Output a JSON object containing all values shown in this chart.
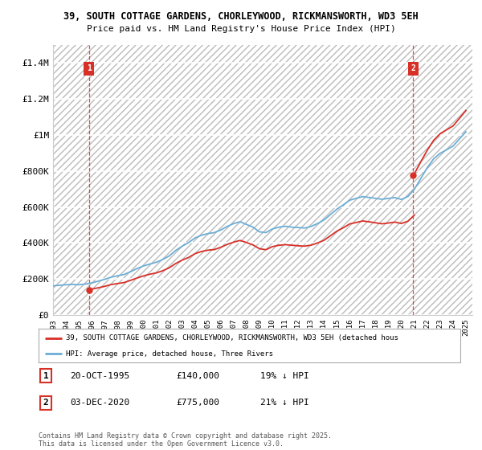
{
  "title_line1": "39, SOUTH COTTAGE GARDENS, CHORLEYWOOD, RICKMANSWORTH, WD3 5EH",
  "title_line2": "Price paid vs. HM Land Registry's House Price Index (HPI)",
  "ylabel_ticks": [
    "£0",
    "£200K",
    "£400K",
    "£600K",
    "£800K",
    "£1M",
    "£1.2M",
    "£1.4M"
  ],
  "ytick_values": [
    0,
    200000,
    400000,
    600000,
    800000,
    1000000,
    1200000,
    1400000
  ],
  "ylim": [
    0,
    1500000
  ],
  "legend_line1": "39, SOUTH COTTAGE GARDENS, CHORLEYWOOD, RICKMANSWORTH, WD3 5EH (detached hous",
  "legend_line2": "HPI: Average price, detached house, Three Rivers",
  "annotation1_label": "1",
  "annotation1_date": "20-OCT-1995",
  "annotation1_price": "£140,000",
  "annotation1_hpi": "19% ↓ HPI",
  "annotation2_label": "2",
  "annotation2_date": "03-DEC-2020",
  "annotation2_price": "£775,000",
  "annotation2_hpi": "21% ↓ HPI",
  "footer": "Contains HM Land Registry data © Crown copyright and database right 2025.\nThis data is licensed under the Open Government Licence v3.0.",
  "hpi_color": "#6baed6",
  "price_color": "#d73027",
  "background_color": "#ffffff"
}
